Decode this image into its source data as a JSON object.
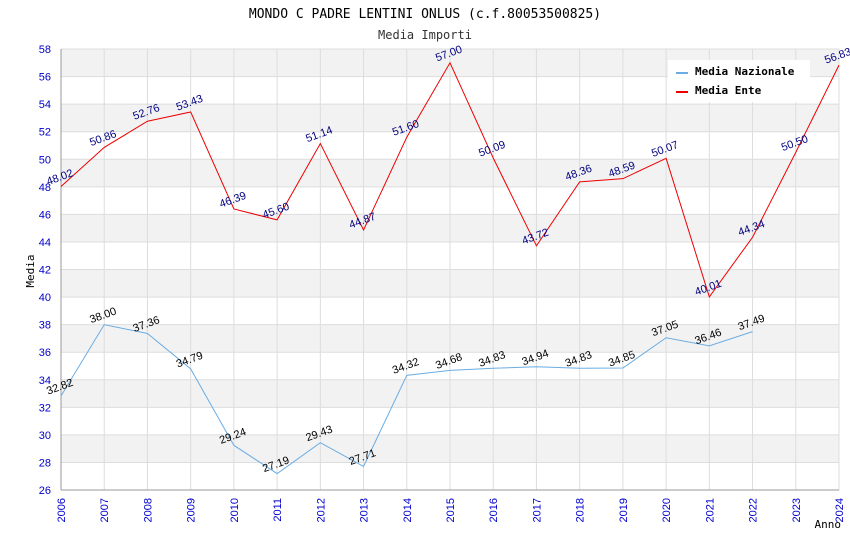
{
  "chart_data": {
    "type": "line",
    "title": "MONDO C PADRE LENTINI ONLUS (c.f.80053500825)",
    "subtitle": "Media Importi",
    "xlabel": "Anno",
    "ylabel": "Media",
    "ylim": [
      26,
      58
    ],
    "ytick_step": 2,
    "grid": true,
    "legend_position": "top-right",
    "x": [
      2006,
      2007,
      2008,
      2009,
      2010,
      2011,
      2012,
      2013,
      2014,
      2015,
      2016,
      2017,
      2018,
      2019,
      2020,
      2021,
      2022,
      2023,
      2024
    ],
    "series": [
      {
        "name": "Media Nazionale",
        "color": "#6aade4",
        "label_color": "#000000",
        "values": [
          32.82,
          38.0,
          37.36,
          34.79,
          29.24,
          27.19,
          29.43,
          27.71,
          34.32,
          34.68,
          34.83,
          34.94,
          34.83,
          34.85,
          37.05,
          36.46,
          37.49,
          null,
          null
        ]
      },
      {
        "name": "Media Ente",
        "color": "#ee0000",
        "label_color": "#000080",
        "values": [
          48.02,
          50.86,
          52.76,
          53.43,
          46.39,
          45.6,
          51.14,
          44.87,
          51.6,
          57.0,
          50.09,
          43.72,
          48.36,
          48.59,
          50.07,
          40.01,
          44.34,
          50.5,
          56.83
        ]
      }
    ]
  }
}
